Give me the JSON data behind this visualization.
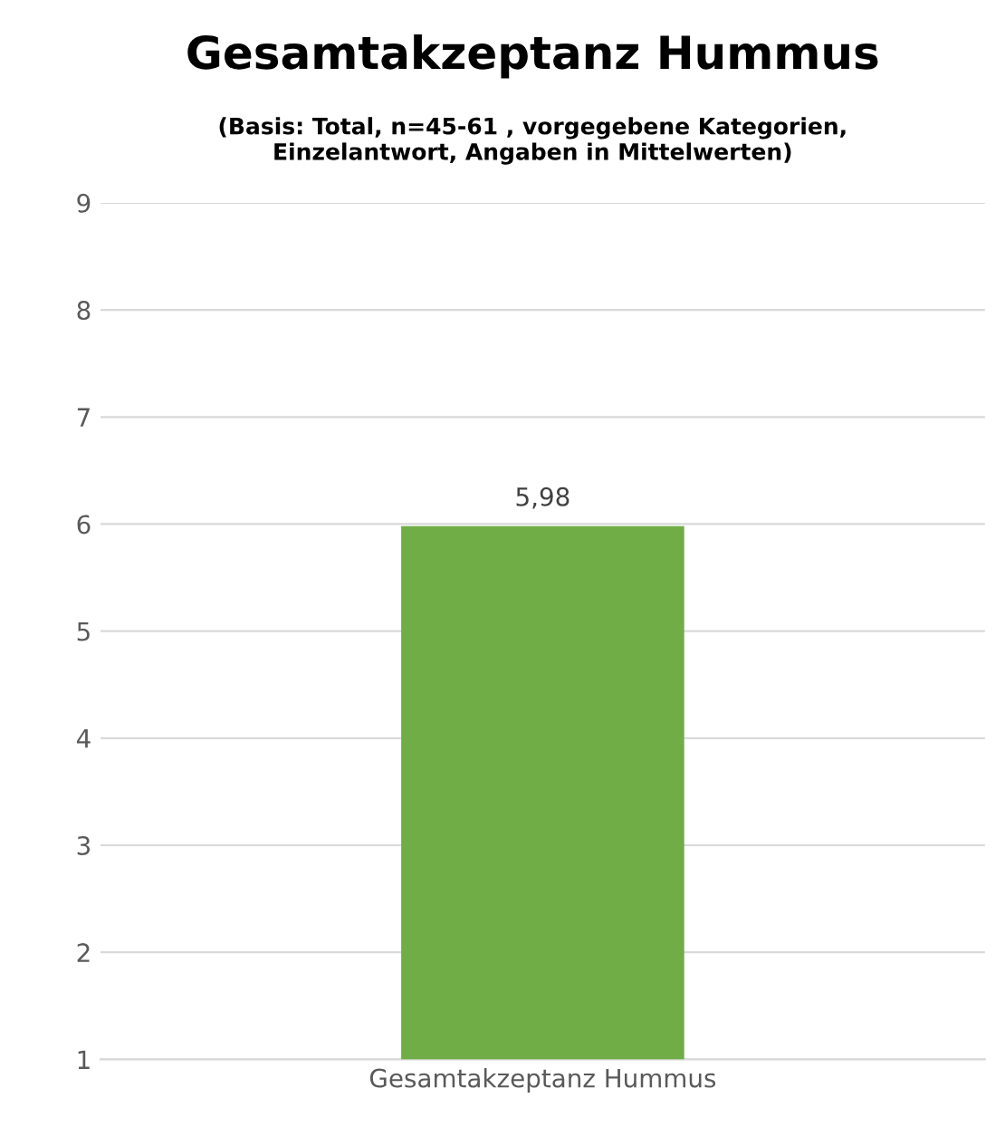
{
  "chart_data": {
    "type": "bar",
    "title": "Gesamtakzeptanz Hummus",
    "subtitle": "(Basis: Total, n=45-61 , vorgegebene Kategorien,\nEinzelantwort, Angaben in Mittelwerten)",
    "categories": [
      "Gesamtakzeptanz Hummus"
    ],
    "series": [
      {
        "color": "#70ad47",
        "values": [
          5.98
        ],
        "value_labels": [
          "5,98"
        ]
      }
    ],
    "ylim": [
      1,
      9
    ],
    "yticks": [
      1,
      2,
      3,
      4,
      5,
      6,
      7,
      8,
      9
    ],
    "grid": "y"
  }
}
